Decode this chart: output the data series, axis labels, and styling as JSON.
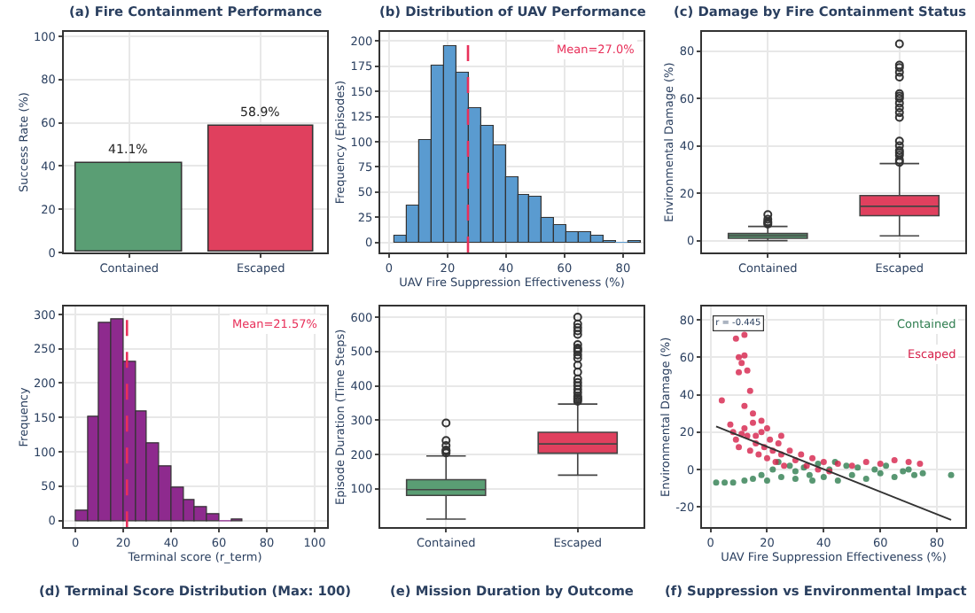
{
  "chart_data": [
    {
      "type": "bar",
      "title": "(a) Fire Containment Performance",
      "ylabel": "Success Rate (%)",
      "categories": [
        "Contained",
        "Escaped"
      ],
      "values": [
        41.1,
        58.9
      ],
      "colors": [
        "#5a9e74",
        "#e0405e"
      ],
      "value_labels": [
        "41.1%",
        "58.9%"
      ],
      "ylim": [
        0,
        102
      ],
      "yticks": [
        0,
        20,
        40,
        60,
        80,
        100
      ],
      "grid": true
    },
    {
      "type": "histogram",
      "title": "(b) Distribution of UAV Performance",
      "xlabel": "UAV Fire Suppression Effectiveness (%)",
      "ylabel": "Frequency (Episodes)",
      "bins": [
        2,
        6.2,
        10.4,
        14.6,
        18.8,
        23,
        27.2,
        31.4,
        35.6,
        39.8,
        44,
        48.2,
        52.4,
        56.6,
        60.8,
        65,
        69.2,
        73.4,
        77.6,
        81.8,
        86
      ],
      "values": [
        7,
        37,
        102,
        176,
        195,
        168,
        133,
        116,
        96,
        65,
        47,
        45,
        25,
        17,
        11,
        11,
        6,
        2,
        0,
        1
      ],
      "color": "#5a9bd0",
      "xlim": [
        -3,
        87
      ],
      "xticks": [
        0,
        20,
        40,
        60,
        80
      ],
      "ylim": [
        -10,
        209
      ],
      "yticks": [
        0,
        25,
        50,
        75,
        100,
        125,
        150,
        175,
        200
      ],
      "ref_lines": [
        {
          "axis": "x",
          "value": 27.0,
          "label": "Mean=27.0%",
          "color": "#e8305a",
          "line_style": "dashed"
        }
      ],
      "legend": "top right",
      "grid": true
    },
    {
      "type": "box",
      "title": "(c) Damage by Fire Containment Status",
      "ylabel": "Environmental Damage (%)",
      "categories": [
        "Contained",
        "Escaped"
      ],
      "colors": [
        "#5a9e74",
        "#e0405e"
      ],
      "boxes": [
        {
          "low": 0,
          "q1": 1,
          "median": 2,
          "q3": 3,
          "high": 6,
          "outliers": [
            7,
            7.5,
            8,
            9,
            11
          ]
        },
        {
          "low": 2,
          "q1": 10.5,
          "median": 14.5,
          "q3": 19,
          "high": 32.5,
          "outliers": [
            33,
            34,
            36,
            37,
            38,
            40,
            42,
            52,
            54,
            56,
            58,
            60,
            61,
            62,
            69,
            71,
            73,
            74,
            83
          ]
        }
      ],
      "ylim": [
        -5,
        88
      ],
      "yticks": [
        0,
        20,
        40,
        60,
        80
      ],
      "grid": true
    },
    {
      "type": "histogram",
      "title": "(d) Terminal Score Distribution (Max: 100)",
      "xlabel": "Terminal score (r_term)",
      "ylabel": "Frequency",
      "bins": [
        0,
        5,
        10,
        15,
        20,
        25,
        30,
        35,
        40,
        45,
        50,
        55,
        60,
        65,
        70
      ],
      "values": [
        15,
        150,
        288,
        293,
        230,
        160,
        113,
        80,
        48,
        30,
        20,
        10,
        0,
        2
      ],
      "color": "#8e2a8e",
      "xlim": [
        -5,
        105
      ],
      "xticks": [
        0,
        20,
        40,
        60,
        80,
        100
      ],
      "ylim": [
        -10,
        311
      ],
      "yticks": [
        0,
        50,
        100,
        150,
        200,
        250,
        300
      ],
      "ref_lines": [
        {
          "axis": "x",
          "value": 21.57,
          "label": "Mean=21.57%",
          "color": "#e8305a",
          "line_style": "dashed"
        }
      ],
      "legend": "top right",
      "grid": true
    },
    {
      "type": "box",
      "title": "(e) Mission Duration by Outcome",
      "ylabel": "Episode Duration (Time Steps)",
      "categories": [
        "Contained",
        "Escaped"
      ],
      "colors": [
        "#5a9e74",
        "#e0405e"
      ],
      "boxes": [
        {
          "low": 12,
          "q1": 81,
          "median": 98,
          "q3": 127,
          "high": 196,
          "outliers": [
            205,
            210,
            213,
            226,
            241,
            292
          ]
        },
        {
          "low": 140,
          "q1": 204,
          "median": 231,
          "q3": 265,
          "high": 347,
          "outliers": [
            355,
            360,
            365,
            370,
            380,
            390,
            400,
            410,
            420,
            440,
            460,
            480,
            490,
            500,
            505,
            510,
            520,
            550,
            560,
            570,
            580,
            600
          ]
        }
      ],
      "ylim": [
        -12,
        630
      ],
      "yticks": [
        100,
        200,
        300,
        400,
        500,
        600
      ],
      "grid": true
    },
    {
      "type": "scatter",
      "title": "(f) Suppression vs Environmental Impact",
      "xlabel": "UAV Fire Suppression Effectiveness (%)",
      "ylabel": "Environmental Damage (%)",
      "annotations": [
        "r = -0.445"
      ],
      "xlim": [
        -3,
        90
      ],
      "xticks": [
        0,
        20,
        40,
        60,
        80
      ],
      "ylim": [
        -31,
        87
      ],
      "yticks": [
        -20,
        0,
        20,
        40,
        60,
        80
      ],
      "legend": "top right",
      "grid": true,
      "marker": "circle",
      "series": [
        {
          "name": "Contained",
          "color": "#2e7d4f",
          "x": [
            2,
            5,
            8,
            12,
            15,
            18,
            20,
            22,
            25,
            28,
            30,
            33,
            35,
            38,
            40,
            42,
            45,
            48,
            50,
            52,
            55,
            58,
            60,
            62,
            65,
            68,
            70,
            72,
            75,
            85,
            24,
            36,
            44,
            30
          ],
          "values": [
            -7,
            -7,
            -7,
            -6,
            -5,
            -3,
            -6,
            0,
            -4,
            2,
            -5,
            1,
            -3,
            3,
            -4,
            0,
            -6,
            2,
            -3,
            1,
            -5,
            0,
            -2,
            2,
            -4,
            -1,
            0,
            -3,
            -2,
            -3,
            4,
            -6,
            4,
            -1
          ]
        },
        {
          "name": "Escaped",
          "color": "#d6204a",
          "x": [
            4,
            7,
            8,
            9,
            12,
            10,
            11,
            12,
            10,
            13,
            14,
            12,
            15,
            9,
            10,
            12,
            13,
            14,
            15,
            16,
            17,
            18,
            19,
            20,
            21,
            22,
            23,
            24,
            25,
            26,
            28,
            30,
            32,
            34,
            36,
            38,
            40,
            42,
            45,
            50,
            55,
            60,
            65,
            70,
            74,
            18,
            20,
            16,
            11,
            25
          ],
          "values": [
            37,
            24,
            20,
            70,
            72,
            60,
            57,
            61,
            52,
            53,
            42,
            34,
            30,
            16,
            12,
            22,
            18,
            10,
            25,
            14,
            8,
            20,
            12,
            6,
            16,
            10,
            4,
            14,
            8,
            2,
            10,
            5,
            8,
            2,
            6,
            0,
            4,
            -1,
            3,
            2,
            4,
            3,
            5,
            4,
            3,
            26,
            22,
            18,
            19,
            18
          ]
        },
        {
          "type": "line",
          "color": "#333333",
          "marker": "none",
          "x": [
            2,
            85
          ],
          "values": [
            23,
            -27
          ]
        }
      ]
    }
  ]
}
